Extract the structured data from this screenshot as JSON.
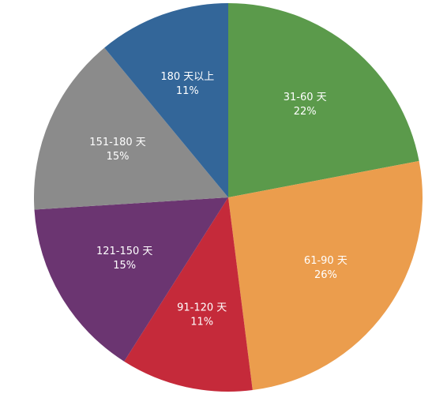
{
  "chart_data": {
    "type": "pie",
    "categories": [
      "31-60 天",
      "61-90 天",
      "91-120 天",
      "121-150 天",
      "151-180 天",
      "180 天以上"
    ],
    "values": [
      22,
      26,
      11,
      15,
      15,
      11
    ],
    "value_labels": [
      "22%",
      "26%",
      "11%",
      "15%",
      "15%",
      "11%"
    ],
    "colors": [
      "#5b9a4b",
      "#eb9d4d",
      "#c52a3a",
      "#6b3571",
      "#8b8b8b",
      "#336699"
    ]
  }
}
